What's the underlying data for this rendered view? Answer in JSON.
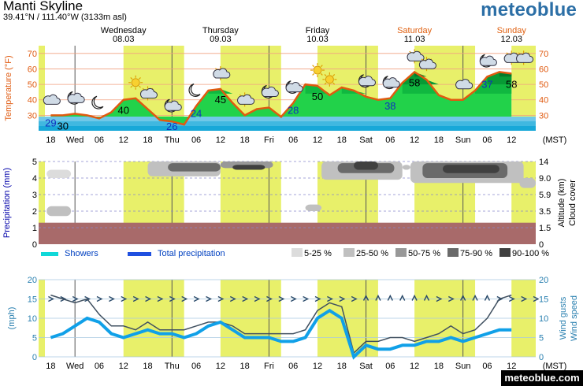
{
  "header": {
    "location": "Manti Skyline",
    "coordinates": "39.41°N / 111.40°W (3133m asl)",
    "brand": "meteoblue",
    "footer_brand": "meteoblue.com"
  },
  "days": [
    {
      "name": "Wednesday",
      "date": "08.03",
      "weekend": false
    },
    {
      "name": "Thursday",
      "date": "09.03",
      "weekend": false
    },
    {
      "name": "Friday",
      "date": "10.03",
      "weekend": false
    },
    {
      "name": "Saturday",
      "date": "11.03",
      "weekend": true
    },
    {
      "name": "Sunday",
      "date": "12.03",
      "weekend": true
    }
  ],
  "time_axis": {
    "labels": [
      "18",
      "Wed",
      "06",
      "12",
      "18",
      "Thu",
      "06",
      "12",
      "18",
      "Fri",
      "06",
      "12",
      "18",
      "Sat",
      "06",
      "12",
      "18",
      "Sun",
      "06",
      "12"
    ],
    "timezone": "(MST)"
  },
  "colors": {
    "daylight": "#e8f06a",
    "weekend_day": "#e06010",
    "temp_line": "#e05a10",
    "temp_axis": "#e05a10",
    "precip_axis": "#0000aa",
    "wind_axis": "#2a80b0",
    "wind_speed": "#10a0e8",
    "wind_gust": "#405060",
    "rain_band": "#a86a6a",
    "showers": "#10d8d8",
    "total_precip": "#2050e0"
  },
  "chart_data": [
    {
      "type": "area",
      "ylabel": "Temperature (°F)",
      "ylim": [
        20,
        75
      ],
      "yticks": [
        30,
        40,
        50,
        60,
        70
      ],
      "x_hours": [
        0,
        3,
        6,
        9,
        12,
        15,
        18,
        21,
        24,
        27,
        30,
        33,
        36,
        39,
        42,
        45,
        48,
        51,
        54,
        57,
        60,
        63,
        66,
        69,
        72,
        75,
        78,
        81,
        84,
        87,
        90,
        93,
        96,
        99,
        102,
        105,
        108,
        111,
        114
      ],
      "temperature": [
        30,
        30,
        31,
        30,
        28,
        32,
        40,
        41,
        34,
        27,
        26,
        24,
        36,
        46,
        47,
        38,
        30,
        34,
        35,
        29,
        38,
        50,
        49,
        43,
        48,
        46,
        42,
        40,
        41,
        51,
        58,
        53,
        43,
        40,
        40,
        46,
        55,
        58,
        57
      ],
      "labels": [
        {
          "text": "29",
          "kind": "min"
        },
        {
          "text": "30",
          "kind": "max"
        },
        {
          "text": "40",
          "kind": "max"
        },
        {
          "text": "26",
          "kind": "min"
        },
        {
          "text": "24",
          "kind": "min"
        },
        {
          "text": "45",
          "kind": "max"
        },
        {
          "text": "28",
          "kind": "min"
        },
        {
          "text": "50",
          "kind": "max"
        },
        {
          "text": "38",
          "kind": "min"
        },
        {
          "text": "58",
          "kind": "max"
        },
        {
          "text": "37",
          "kind": "min"
        },
        {
          "text": "58",
          "kind": "max"
        }
      ],
      "icons": [
        "partly-cloudy-icon",
        "moon-cloud-icon",
        "moon-icon",
        "sun-icon",
        "sun-cloud-icon",
        "moon-cloud-icon",
        "moon-icon",
        "sun-cloud-icon",
        "sun-cloud-icon",
        "moon-cloud-icon",
        "moon-cloud-icon",
        "sun-icon",
        "sun-icon",
        "cloud-moon-icon",
        "moon-cloud-icon",
        "sun-cloud-icon",
        "sun-cloud-icon",
        "cloudy-icon",
        "moon-cloud-icon",
        "sun-cloud-icon",
        "sun-cloud-icon"
      ]
    },
    {
      "type": "heatmap",
      "ylabel_left": "Precipitation (mm)",
      "ylabel_right": "Altitude (km)",
      "ylabel_right2": "Cloud cover",
      "yticks_left": [
        0,
        1,
        2,
        3,
        4,
        5
      ],
      "yticks_right": [
        "0",
        "1.5",
        "3.5",
        "5.9",
        "9.0",
        "14"
      ],
      "legend": [
        {
          "label": "Showers",
          "kind": "line"
        },
        {
          "label": "Total precipitation",
          "kind": "line"
        },
        {
          "label": "5-25 %",
          "color": "#dcdcdc"
        },
        {
          "label": "25-50 %",
          "color": "#c0c0c0"
        },
        {
          "label": "50-75 %",
          "color": "#989898"
        },
        {
          "label": "75-90 %",
          "color": "#6a6a6a"
        },
        {
          "label": "90-100 %",
          "color": "#404040"
        }
      ]
    },
    {
      "type": "line",
      "ylabel_left": "(mph)",
      "ylabel_right": "Wind speed",
      "ylabel_right2": "Wind gusts",
      "ylim": [
        0,
        20
      ],
      "yticks": [
        0,
        5,
        10,
        15,
        20
      ],
      "x_hours": [
        0,
        3,
        6,
        9,
        12,
        15,
        18,
        21,
        24,
        27,
        30,
        33,
        36,
        39,
        42,
        45,
        48,
        51,
        54,
        57,
        60,
        63,
        66,
        69,
        72,
        75,
        78,
        81,
        84,
        87,
        90,
        93,
        96,
        99,
        102,
        105,
        108,
        111,
        114
      ],
      "series": [
        {
          "name": "Wind speed",
          "values": [
            5,
            6,
            8,
            10,
            9,
            6,
            5,
            6,
            7,
            6,
            6,
            5,
            6,
            8,
            9,
            7,
            5,
            5,
            5,
            4,
            4,
            5,
            10,
            12,
            10,
            0,
            3,
            2,
            2,
            3,
            3,
            4,
            4,
            5,
            4,
            5,
            6,
            7,
            7
          ]
        },
        {
          "name": "Wind gusts",
          "values": [
            16,
            15,
            14,
            15,
            11,
            8,
            8,
            7,
            9,
            7,
            7,
            7,
            8,
            9,
            9,
            8,
            6,
            6,
            6,
            6,
            6,
            7,
            12,
            14,
            13,
            1,
            4,
            4,
            5,
            5,
            4,
            5,
            6,
            8,
            6,
            7,
            10,
            15,
            16
          ]
        }
      ]
    }
  ]
}
